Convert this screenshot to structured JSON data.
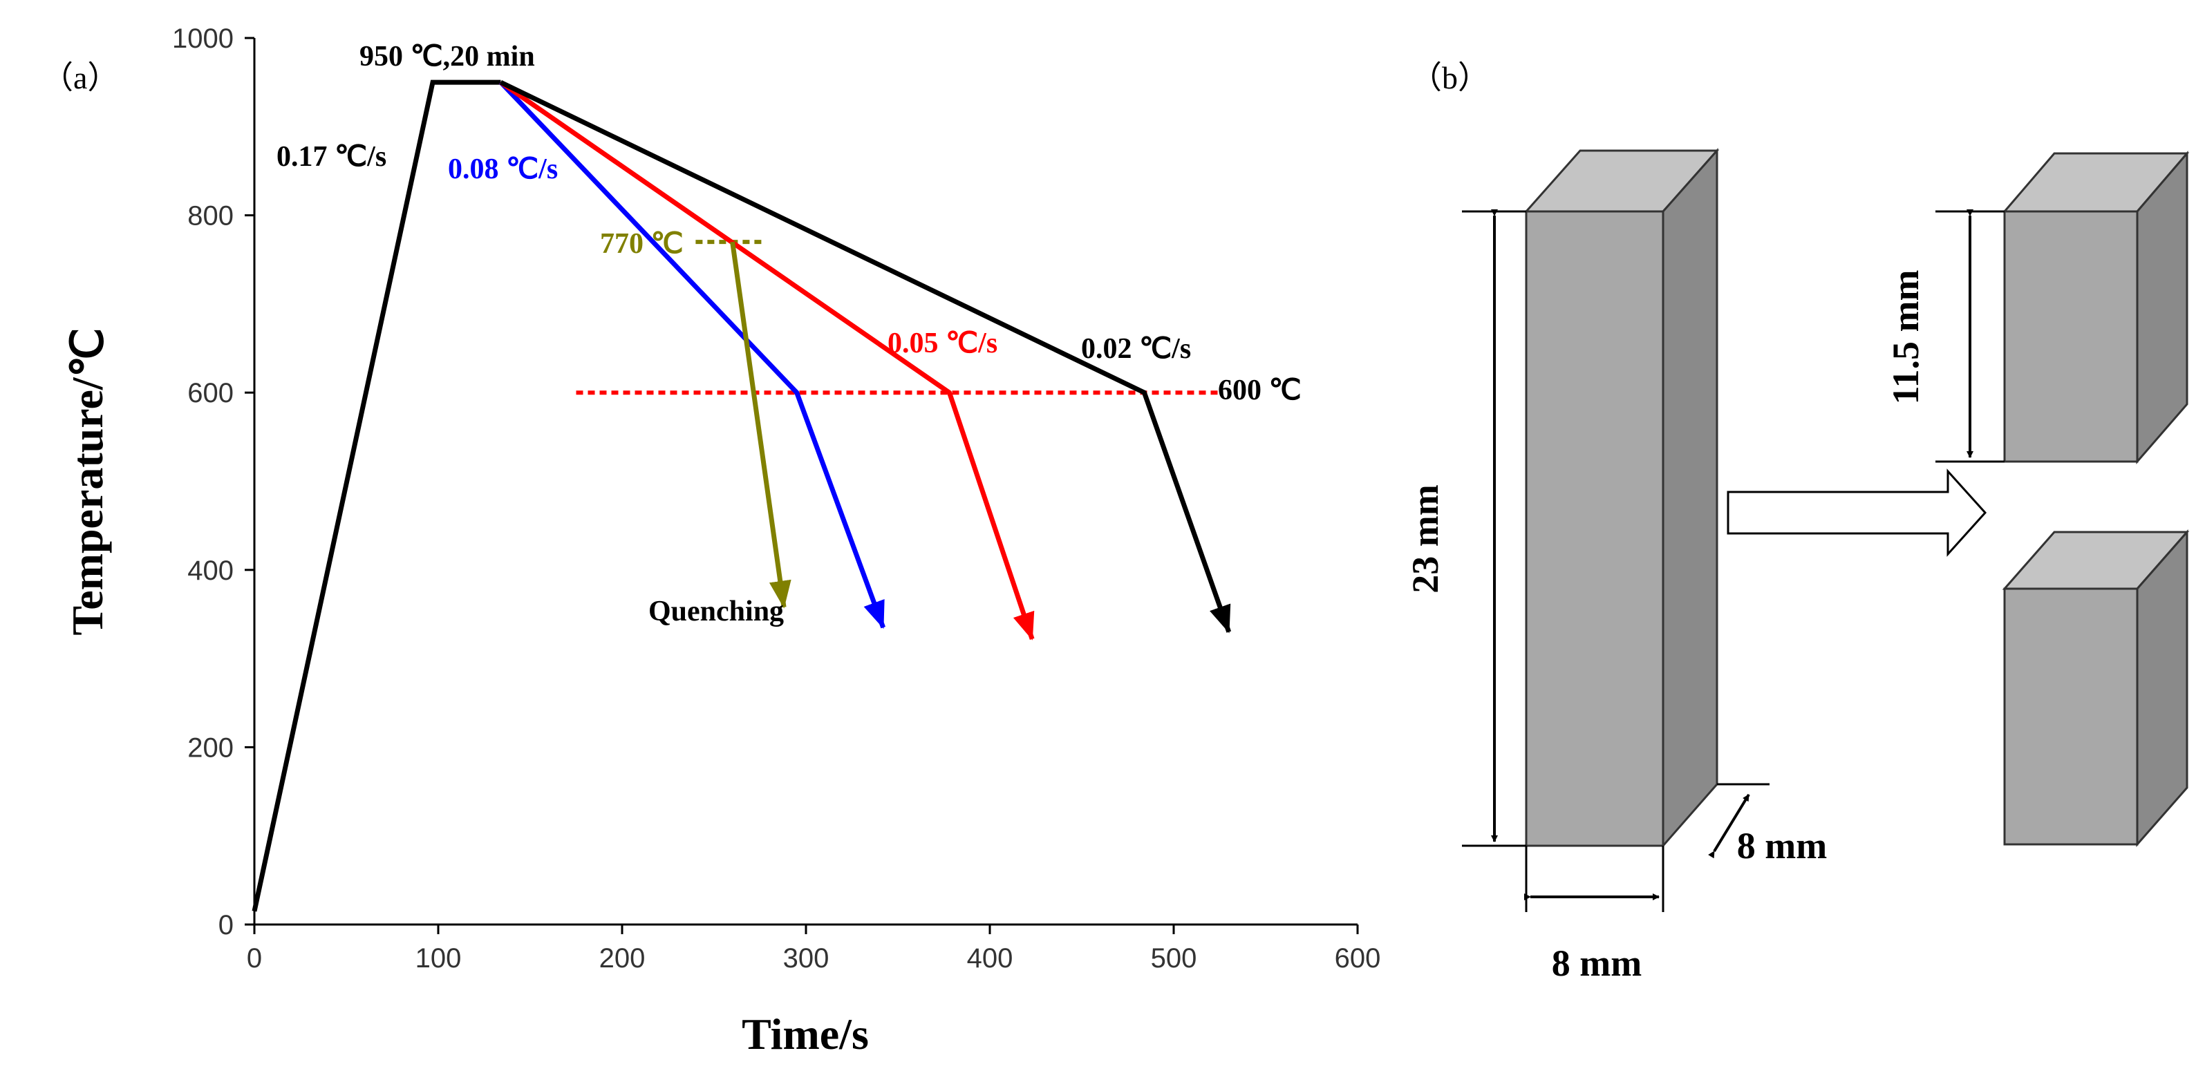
{
  "figure": {
    "panel_a_label": "（a）",
    "panel_b_label": "（b）"
  },
  "chart_data": {
    "type": "line",
    "title": "",
    "xlabel": "Time/s",
    "ylabel": "Temperature/℃",
    "xlim": [
      0,
      600
    ],
    "ylim": [
      0,
      1000
    ],
    "xticks": [
      0,
      100,
      200,
      300,
      400,
      500,
      600
    ],
    "yticks": [
      0,
      200,
      400,
      600,
      800,
      1000
    ],
    "grid": false,
    "colors": {
      "heating": "#000000",
      "quench_770": "#808000",
      "rate_008": "#0000ff",
      "rate_005": "#ff0000",
      "rate_002": "#000000",
      "reference_600": "#ff0000"
    },
    "series": [
      {
        "name": "heating",
        "color": "#000000",
        "points": [
          [
            0,
            15
          ],
          [
            97,
            950
          ],
          [
            134,
            950
          ]
        ]
      },
      {
        "name": "0.08 ℃/s",
        "color": "#0000ff",
        "points": [
          [
            134,
            950
          ],
          [
            295,
            600
          ],
          [
            342,
            335
          ]
        ]
      },
      {
        "name": "0.05 ℃/s",
        "color": "#ff0000",
        "points": [
          [
            134,
            950
          ],
          [
            378,
            600
          ],
          [
            423,
            322
          ]
        ]
      },
      {
        "name": "0.02 ℃/s",
        "color": "#000000",
        "points": [
          [
            134,
            950
          ],
          [
            484,
            600
          ],
          [
            530,
            330
          ]
        ]
      },
      {
        "name": "770 ℃ quench",
        "color": "#808000",
        "points": [
          [
            260,
            770
          ],
          [
            288,
            358
          ]
        ]
      }
    ],
    "reference_lines": [
      {
        "label": "600 ℃",
        "value": 600,
        "x_from": 175,
        "x_to": 525,
        "color": "#ff0000"
      },
      {
        "label": "770 ℃",
        "value": 770,
        "x_from": 240,
        "x_to": 278,
        "color": "#808000"
      }
    ],
    "annotations": {
      "hold": "950 ℃,20 min",
      "heating_rate": "0.17 ℃/s",
      "rate_008": "0.08 ℃/s",
      "rate_005": "0.05 ℃/s",
      "rate_002": "0.02 ℃/s",
      "temp_770": "770 ℃",
      "temp_600": "600 ℃",
      "quenching": "Quenching"
    }
  },
  "specimen": {
    "height_label": "23 mm",
    "width_label": "8 mm",
    "depth_label": "8 mm",
    "half_height_label": "11.5 mm",
    "face_color": "#a8a8a8",
    "top_color": "#c4c4c4",
    "side_color": "#8a8a8a"
  }
}
